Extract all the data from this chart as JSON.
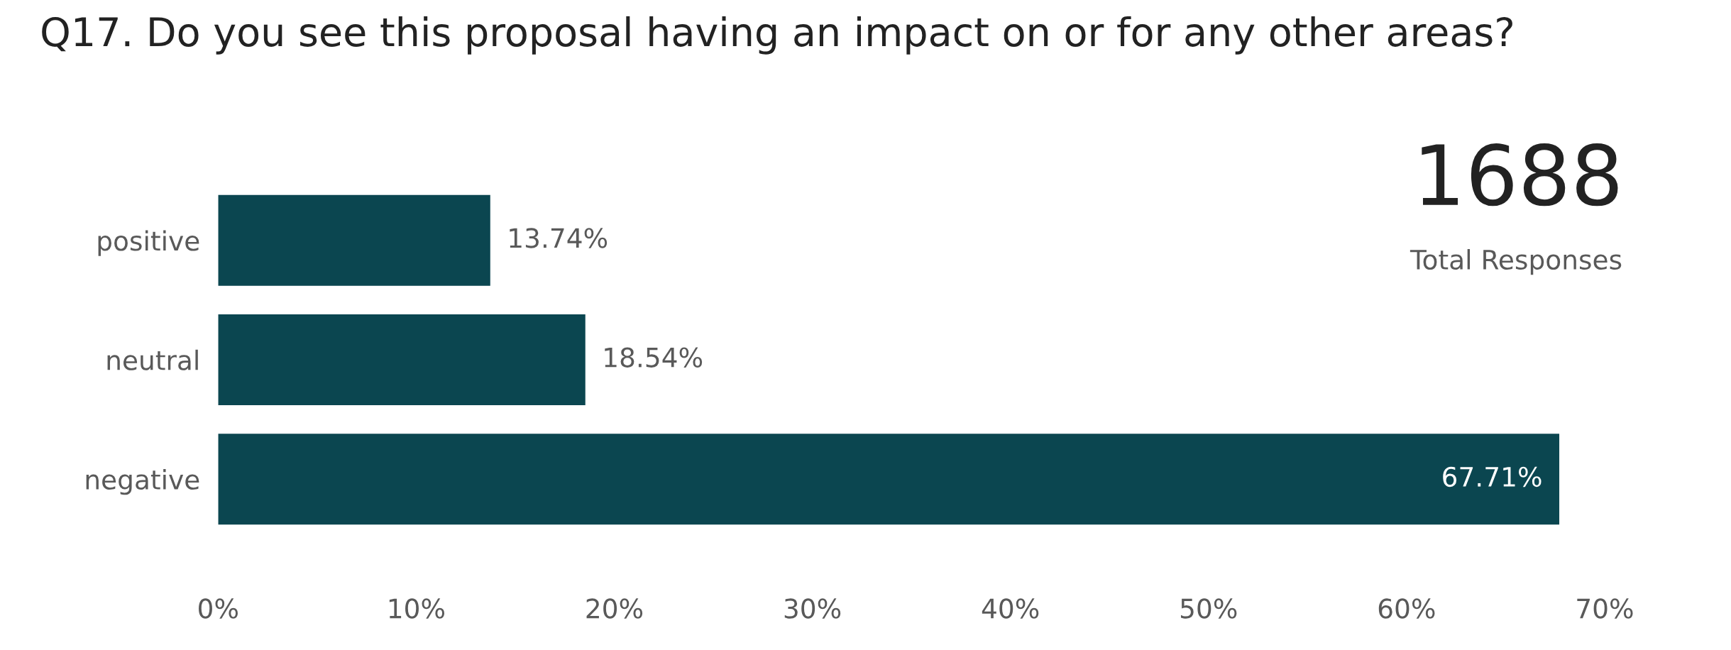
{
  "chart_data": {
    "type": "bar",
    "orientation": "horizontal",
    "title": "Q17. Do you see this proposal having an impact on or for any other areas?",
    "categories": [
      "positive",
      "neutral",
      "negative"
    ],
    "values": [
      13.74,
      18.54,
      67.71
    ],
    "value_labels": [
      "13.74%",
      "18.54%",
      "67.71%"
    ],
    "color": "#0b4650",
    "xlim": [
      0,
      70
    ],
    "xticks": [
      {
        "value": 0,
        "label": "0%"
      },
      {
        "value": 10,
        "label": "10%"
      },
      {
        "value": 20,
        "label": "20%"
      },
      {
        "value": 30,
        "label": "30%"
      },
      {
        "value": 40,
        "label": "40%"
      },
      {
        "value": 50,
        "label": "50%"
      },
      {
        "value": 60,
        "label": "60%"
      },
      {
        "value": 70,
        "label": "70%"
      }
    ],
    "annotations": [
      "1688",
      "Total Responses"
    ],
    "grid": false,
    "legend": false
  }
}
